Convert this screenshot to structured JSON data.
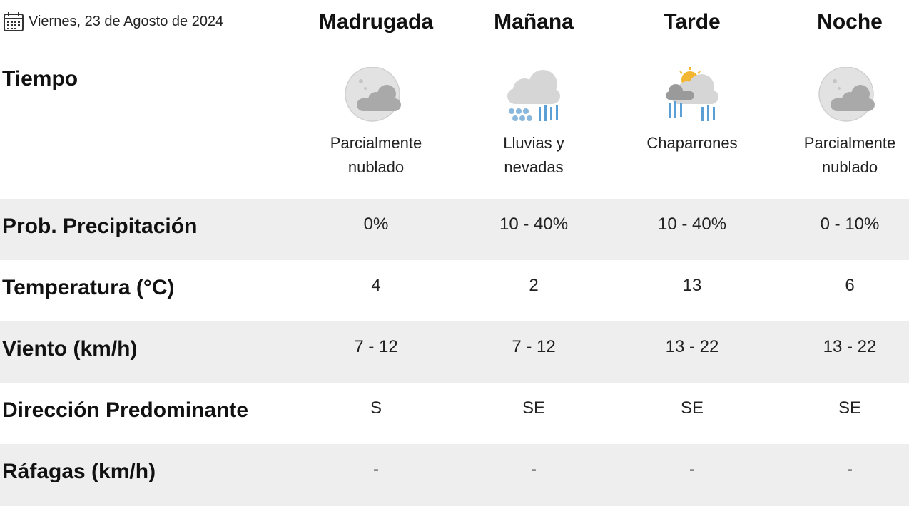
{
  "header": {
    "date": "Viernes, 23 de Agosto de 2024",
    "periods": [
      "Madrugada",
      "Mañana",
      "Tarde",
      "Noche"
    ]
  },
  "weather": {
    "label": "Tiempo",
    "items": [
      {
        "icon": "partly-cloudy-night-icon",
        "desc": "Parcialmente\nnublado"
      },
      {
        "icon": "rain-snow-icon",
        "desc": "Lluvias y\nnevadas"
      },
      {
        "icon": "showers-sun-icon",
        "desc": "Chaparrones"
      },
      {
        "icon": "partly-cloudy-night-icon",
        "desc": "Parcialmente\nnublado"
      }
    ]
  },
  "rows": [
    {
      "label": "Prob. Precipitación",
      "values": [
        "0%",
        "10 - 40%",
        "10 - 40%",
        "0 - 10%"
      ]
    },
    {
      "label": "Temperatura (°C)",
      "values": [
        "4",
        "2",
        "13",
        "6"
      ]
    },
    {
      "label": "Viento (km/h)",
      "values": [
        "7 - 12",
        "7 - 12",
        "13 - 22",
        "13 - 22"
      ]
    },
    {
      "label": "Dirección Predominante",
      "values": [
        "S",
        "SE",
        "SE",
        "SE"
      ]
    },
    {
      "label": "Ráfagas (km/h)",
      "values": [
        "-",
        "-",
        "-",
        "-"
      ]
    }
  ],
  "colors": {
    "row_shade": "#eeeeee",
    "text": "#111111",
    "rain": "#5aa0d6",
    "sun": "#f2b632"
  }
}
